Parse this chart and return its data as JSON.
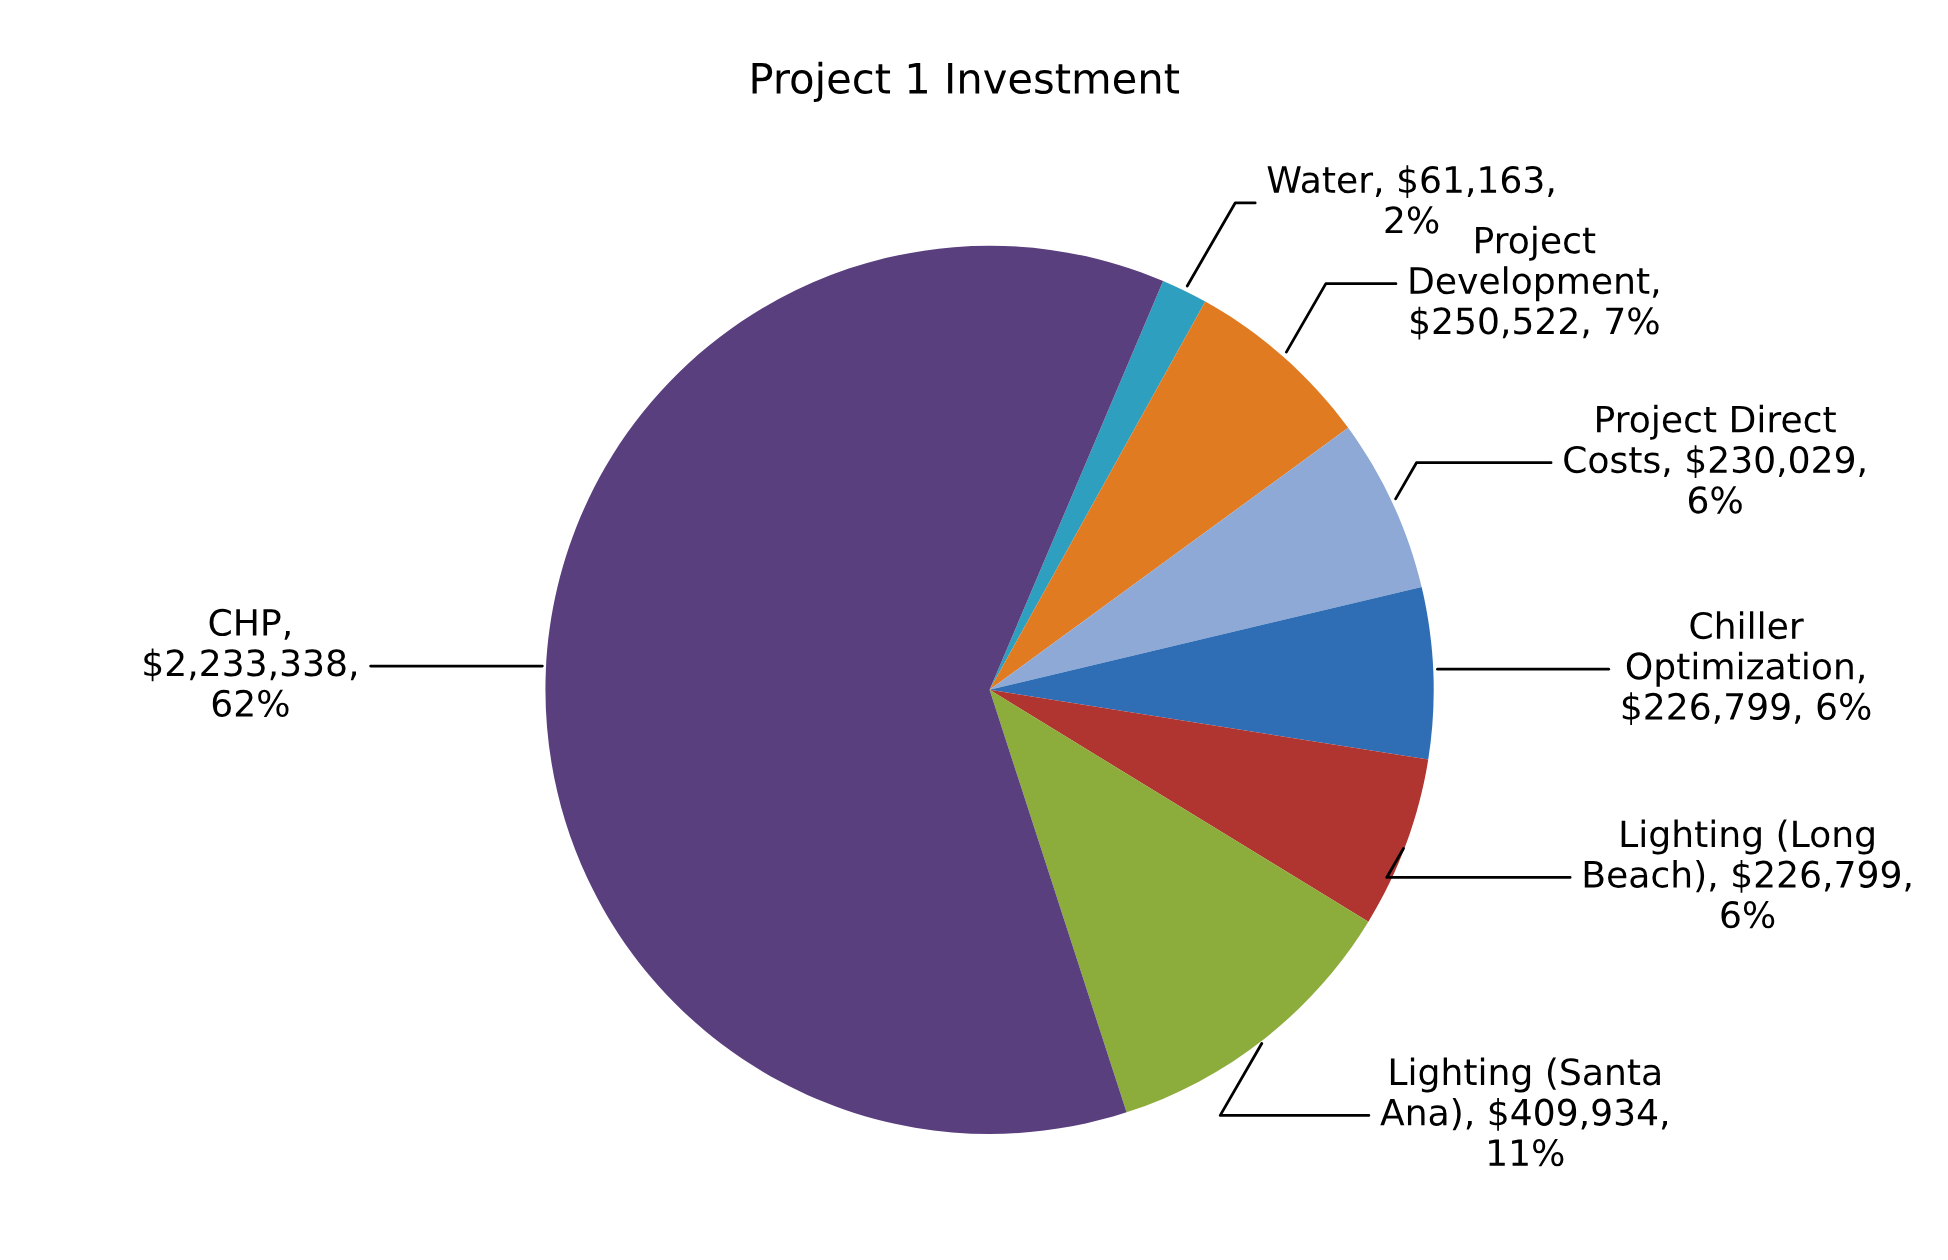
{
  "chart_data": {
    "type": "pie",
    "title": "Project 1 Investment",
    "categories": [
      "Water",
      "Project Development",
      "Project Direct Costs",
      "Chiller Optimization",
      "Lighting (Long Beach)",
      "Lighting (Santa Ana)",
      "CHP"
    ],
    "values": [
      61163,
      250522,
      230029,
      226799,
      226799,
      409934,
      2233338
    ],
    "value_labels": [
      ", $61,163, 2%",
      ", $250,522, 7%",
      ", $230,029, 6%",
      ", $226,799, 6%",
      ", $226,799, 6%",
      ", $409,934, 11%",
      ", $2,233,338, 62%"
    ],
    "colors": [
      "#2e9fbf",
      "#e07b22",
      "#8ea9d6",
      "#2f6db5",
      "#b0342f",
      "#8cac3b",
      "#5a3f7e"
    ],
    "legend": false
  }
}
